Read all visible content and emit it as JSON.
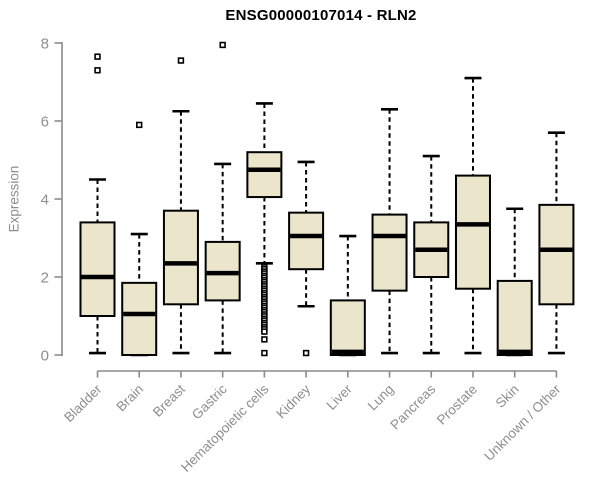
{
  "colors": {
    "box_fill": "#ebe5cb",
    "box_border": "#000000",
    "median": "#000000",
    "axis": "#8a8a8a",
    "tick_label": "#8e8e8e",
    "title": "#000000",
    "background": "#ffffff"
  },
  "chart_data": {
    "type": "boxplot",
    "title": "ENSG00000107014 - RLN2",
    "ylabel": "Expression",
    "xlabel": "",
    "ylim": [
      0,
      8
    ],
    "yticks": [
      0,
      2,
      4,
      6,
      8
    ],
    "grid": false,
    "categories": [
      "Bladder",
      "Brain",
      "Breast",
      "Gastric",
      "Hematopoietic cells",
      "Kidney",
      "Liver",
      "Lung",
      "Pancreas",
      "Prostate",
      "Skin",
      "Unknown / Other"
    ],
    "series": [
      {
        "name": "Bladder",
        "whisker_low": 0.05,
        "q1": 1.0,
        "median": 2.0,
        "q3": 3.4,
        "whisker_high": 4.5,
        "outliers": [
          7.3,
          7.65
        ]
      },
      {
        "name": "Brain",
        "whisker_low": 0.0,
        "q1": 0.0,
        "median": 1.05,
        "q3": 1.85,
        "whisker_high": 3.1,
        "outliers": [
          5.9
        ]
      },
      {
        "name": "Breast",
        "whisker_low": 0.05,
        "q1": 1.3,
        "median": 2.35,
        "q3": 3.7,
        "whisker_high": 6.25,
        "outliers": [
          7.55
        ]
      },
      {
        "name": "Gastric",
        "whisker_low": 0.05,
        "q1": 1.4,
        "median": 2.1,
        "q3": 2.9,
        "whisker_high": 4.9,
        "outliers": [
          7.95
        ]
      },
      {
        "name": "Hematopoietic cells",
        "whisker_low": 2.35,
        "q1": 4.05,
        "median": 4.75,
        "q3": 5.2,
        "whisker_high": 6.45,
        "outliers": [
          2.25,
          2.2,
          2.14,
          2.09,
          2.03,
          1.98,
          1.92,
          1.87,
          1.81,
          1.76,
          1.7,
          1.65,
          1.59,
          1.54,
          1.48,
          1.43,
          1.37,
          1.32,
          1.26,
          1.21,
          1.15,
          1.1,
          1.04,
          0.99,
          0.93,
          0.88,
          0.82,
          0.77,
          0.71,
          0.66,
          0.6,
          0.4,
          0.05
        ]
      },
      {
        "name": "Kidney",
        "whisker_low": 1.25,
        "q1": 2.2,
        "median": 3.05,
        "q3": 3.65,
        "whisker_high": 4.95,
        "outliers": [
          0.05
        ]
      },
      {
        "name": "Liver",
        "whisker_low": 0.0,
        "q1": 0.0,
        "median": 0.08,
        "q3": 1.4,
        "whisker_high": 3.05,
        "outliers": []
      },
      {
        "name": "Lung",
        "whisker_low": 0.05,
        "q1": 1.65,
        "median": 3.05,
        "q3": 3.6,
        "whisker_high": 6.3,
        "outliers": []
      },
      {
        "name": "Pancreas",
        "whisker_low": 0.05,
        "q1": 2.0,
        "median": 2.7,
        "q3": 3.4,
        "whisker_high": 5.1,
        "outliers": []
      },
      {
        "name": "Prostate",
        "whisker_low": 0.05,
        "q1": 1.7,
        "median": 3.35,
        "q3": 4.6,
        "whisker_high": 7.1,
        "outliers": []
      },
      {
        "name": "Skin",
        "whisker_low": 0.0,
        "q1": 0.0,
        "median": 0.08,
        "q3": 1.9,
        "whisker_high": 3.75,
        "outliers": []
      },
      {
        "name": "Unknown / Other",
        "whisker_low": 0.05,
        "q1": 1.3,
        "median": 2.7,
        "q3": 3.85,
        "whisker_high": 5.7,
        "outliers": []
      }
    ]
  }
}
